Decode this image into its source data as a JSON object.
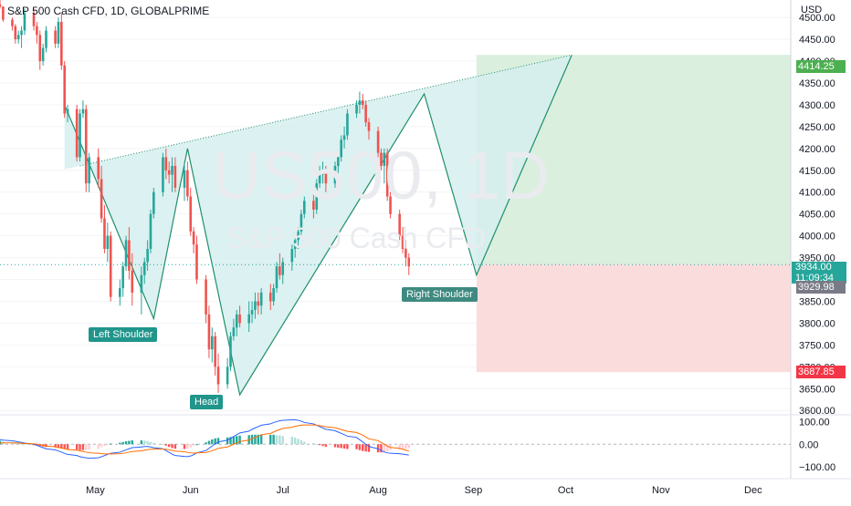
{
  "header": {
    "title": "S&P 500 Cash CFD, 1D, GLOBALPRIME"
  },
  "watermark": {
    "symbol": "US500, 1D",
    "name": "S&P 500 Cash CFD"
  },
  "pattern_labels": {
    "left_shoulder": "Left Shoulder",
    "head": "Head",
    "right_shoulder": "Right Shoulder"
  },
  "price_axis": {
    "currency": "USD",
    "ticks": [
      "4500.00",
      "4450.00",
      "4400.00",
      "4350.00",
      "4300.00",
      "4250.00",
      "4200.00",
      "4150.00",
      "4100.00",
      "4050.00",
      "4000.00",
      "3950.00",
      "3900.00",
      "3850.00",
      "3800.00",
      "3750.00",
      "3700.00",
      "3650.00",
      "3600.00"
    ],
    "target_tag": "4414.25",
    "current_price": "3934.00",
    "countdown": "11:09:34",
    "gray_tag": "3929.98",
    "stop_tag": "3687.85"
  },
  "macd_axis": {
    "ticks": [
      "100.00",
      "0.00",
      "−100.00"
    ]
  },
  "time_axis": {
    "ticks": [
      "May",
      "Jun",
      "Jul",
      "Aug",
      "Sep",
      "Oct",
      "Nov",
      "Dec"
    ]
  },
  "colors": {
    "up": "#26a69a",
    "down": "#ef5350",
    "pattern_fill": "#d6eeee",
    "pattern_line": "#1f8f6a",
    "profit_zone": "#d8eedc",
    "loss_zone": "#fbdadb",
    "macd_line": "#2962ff",
    "signal_line": "#ff6d00",
    "target_tag": "#4caf50",
    "stop_tag": "#f23645",
    "gray_tag": "#787b86"
  },
  "chart_data": {
    "type": "candlestick",
    "title": "S&P 500 Cash CFD, 1D, GLOBALPRIME",
    "ylim": [
      3590,
      4540
    ],
    "price_levels": {
      "target": 4414.25,
      "entry": 3934.0,
      "stop": 3687.85,
      "last": 3929.98
    },
    "pattern": {
      "name": "head and shoulders (inverse)",
      "points": [
        {
          "date": "2022-04-21",
          "price": 4300
        },
        {
          "date": "2022-05-20",
          "price": 3810
        },
        {
          "date": "2022-05-31",
          "price": 4200
        },
        {
          "date": "2022-06-17",
          "price": 3636
        },
        {
          "date": "2022-08-16",
          "price": 4325
        },
        {
          "date": "2022-09-02",
          "price": 3910
        },
        {
          "date": "2022-10-03",
          "price": 4414
        }
      ],
      "neckline": [
        {
          "date": "2022-04-26",
          "price": 4160
        },
        {
          "date": "2022-10-03",
          "price": 4414
        }
      ]
    },
    "candles": {
      "start_date": "2022-03-31",
      "ohlc": [
        [
          4530,
          4545,
          4520,
          4525
        ],
        [
          4525,
          4525,
          4490,
          4495
        ],
        [
          4495,
          4500,
          4470,
          4480
        ],
        [
          4480,
          4485,
          4440,
          4450
        ],
        [
          4450,
          4470,
          4440,
          4460
        ],
        [
          4460,
          4480,
          4430,
          4470
        ],
        [
          4470,
          4520,
          4460,
          4510
        ],
        [
          4510,
          4520,
          4470,
          4480
        ],
        [
          4480,
          4490,
          4440,
          4460
        ],
        [
          4460,
          4470,
          4380,
          4400
        ],
        [
          4400,
          4440,
          4390,
          4430
        ],
        [
          4430,
          4480,
          4420,
          4470
        ],
        [
          4470,
          4480,
          4430,
          4440
        ],
        [
          4440,
          4500,
          4430,
          4490
        ],
        [
          4490,
          4510,
          4380,
          4390
        ],
        [
          4390,
          4400,
          4270,
          4280
        ],
        [
          4280,
          4300,
          4260,
          4290
        ],
        [
          4290,
          4300,
          4170,
          4180
        ],
        [
          4180,
          4290,
          4170,
          4280
        ],
        [
          4280,
          4310,
          4270,
          4290
        ],
        [
          4290,
          4300,
          4100,
          4120
        ],
        [
          4120,
          4190,
          4100,
          4180
        ],
        [
          4180,
          4200,
          4110,
          4130
        ],
        [
          4130,
          4160,
          4030,
          4040
        ],
        [
          4040,
          4070,
          3960,
          3970
        ],
        [
          3970,
          4030,
          3940,
          4000
        ],
        [
          4000,
          4010,
          3850,
          3860
        ],
        [
          3860,
          3900,
          3840,
          3880
        ],
        [
          3880,
          3940,
          3860,
          3930
        ],
        [
          3930,
          4000,
          3920,
          3990
        ],
        [
          3990,
          4020,
          3900,
          3920
        ],
        [
          3920,
          3960,
          3840,
          3870
        ],
        [
          3870,
          3930,
          3820,
          3910
        ],
        [
          3910,
          3950,
          3890,
          3940
        ],
        [
          3940,
          3990,
          3920,
          3970
        ],
        [
          3970,
          4060,
          3960,
          4050
        ],
        [
          4050,
          4110,
          4040,
          4100
        ],
        [
          4100,
          4190,
          4090,
          4180
        ],
        [
          4180,
          4200,
          4130,
          4150
        ],
        [
          4150,
          4170,
          4120,
          4140
        ],
        [
          4140,
          4180,
          4100,
          4160
        ],
        [
          4160,
          4180,
          4100,
          4110
        ],
        [
          4110,
          4170,
          4080,
          4150
        ],
        [
          4150,
          4170,
          4080,
          4090
        ],
        [
          4090,
          4110,
          4000,
          4010
        ],
        [
          4010,
          4020,
          3960,
          3980
        ],
        [
          3980,
          4000,
          3890,
          3900
        ],
        [
          3900,
          3910,
          3800,
          3820
        ],
        [
          3820,
          3840,
          3720,
          3740
        ],
        [
          3740,
          3790,
          3710,
          3770
        ],
        [
          3770,
          3780,
          3680,
          3700
        ],
        [
          3700,
          3730,
          3640,
          3660
        ],
        [
          3660,
          3720,
          3650,
          3700
        ],
        [
          3700,
          3780,
          3690,
          3770
        ],
        [
          3770,
          3810,
          3760,
          3790
        ],
        [
          3790,
          3830,
          3770,
          3820
        ],
        [
          3820,
          3840,
          3790,
          3800
        ],
        [
          3800,
          3850,
          3780,
          3820
        ],
        [
          3820,
          3850,
          3800,
          3830
        ],
        [
          3830,
          3870,
          3810,
          3850
        ],
        [
          3850,
          3870,
          3820,
          3840
        ],
        [
          3840,
          3880,
          3820,
          3870
        ],
        [
          3870,
          3890,
          3830,
          3850
        ],
        [
          3850,
          3890,
          3840,
          3880
        ],
        [
          3880,
          3940,
          3870,
          3930
        ],
        [
          3930,
          3960,
          3900,
          3910
        ],
        [
          3910,
          3950,
          3890,
          3940
        ],
        [
          3940,
          3980,
          3920,
          3970
        ],
        [
          3970,
          4010,
          3950,
          3990
        ],
        [
          3990,
          4020,
          3970,
          4010
        ],
        [
          4010,
          4060,
          4000,
          4050
        ],
        [
          4050,
          4090,
          4040,
          4080
        ],
        [
          4080,
          4100,
          4040,
          4060
        ],
        [
          4060,
          4130,
          4050,
          4120
        ],
        [
          4120,
          4160,
          4110,
          4140
        ],
        [
          4140,
          4170,
          4120,
          4150
        ],
        [
          4150,
          4160,
          4100,
          4120
        ],
        [
          4120,
          4170,
          4110,
          4160
        ],
        [
          4160,
          4190,
          4140,
          4180
        ],
        [
          4180,
          4230,
          4170,
          4220
        ],
        [
          4220,
          4250,
          4200,
          4230
        ],
        [
          4230,
          4290,
          4220,
          4280
        ],
        [
          4280,
          4310,
          4270,
          4300
        ],
        [
          4300,
          4330,
          4280,
          4310
        ],
        [
          4310,
          4325,
          4290,
          4300
        ],
        [
          4300,
          4310,
          4250,
          4260
        ],
        [
          4260,
          4270,
          4220,
          4240
        ],
        [
          4240,
          4250,
          4180,
          4190
        ],
        [
          4190,
          4200,
          4150,
          4160
        ],
        [
          4160,
          4200,
          4120,
          4190
        ],
        [
          4190,
          4200,
          4080,
          4090
        ],
        [
          4090,
          4100,
          4040,
          4050
        ],
        [
          4050,
          4060,
          3990,
          4000
        ],
        [
          4000,
          4020,
          3960,
          3970
        ],
        [
          3970,
          3990,
          3930,
          3950
        ],
        [
          3950,
          3960,
          3910,
          3930
        ]
      ]
    },
    "macd": {
      "ylim": [
        -140,
        130
      ],
      "macd_line": [
        20,
        18,
        15,
        13,
        10,
        8,
        5,
        0,
        -5,
        -10,
        -15,
        -20,
        -25,
        -30,
        -35,
        -40,
        -45,
        -50,
        -55,
        -58,
        -60,
        -62,
        -60,
        -55,
        -50,
        -45,
        -40,
        -35,
        -30,
        -25,
        -20,
        -15,
        -12,
        -10,
        -10,
        -12,
        -15,
        -20,
        -28,
        -36,
        -44,
        -50,
        -54,
        -55,
        -52,
        -46,
        -38,
        -28,
        -18,
        -8,
        2,
        10,
        18,
        26,
        34,
        42,
        50,
        58,
        66,
        72,
        78,
        84,
        90,
        96,
        100,
        104,
        106,
        108,
        108,
        106,
        102,
        96,
        90,
        84,
        78,
        72,
        66,
        60,
        54,
        48,
        42,
        36,
        30,
        20,
        10,
        0,
        -10,
        -20,
        -28,
        -34,
        -38,
        -40,
        -42,
        -44,
        -46,
        -48
      ],
      "signal_line": [
        5,
        6,
        6,
        6,
        5,
        4,
        3,
        2,
        0,
        -2,
        -5,
        -8,
        -11,
        -14,
        -17,
        -20,
        -23,
        -26,
        -29,
        -32,
        -35,
        -38,
        -40,
        -42,
        -43,
        -43,
        -43,
        -42,
        -40,
        -38,
        -35,
        -32,
        -29,
        -26,
        -24,
        -22,
        -21,
        -21,
        -22,
        -24,
        -27,
        -30,
        -33,
        -36,
        -38,
        -39,
        -38,
        -36,
        -33,
        -29,
        -24,
        -18,
        -12,
        -6,
        0,
        6,
        12,
        18,
        24,
        30,
        36,
        42,
        48,
        54,
        60,
        65,
        70,
        75,
        79,
        82,
        84,
        85,
        85,
        84,
        82,
        80,
        77,
        73,
        69,
        65,
        61,
        57,
        52,
        46,
        40,
        32,
        24,
        16,
        8,
        0,
        -8,
        -14,
        -18,
        -22,
        -26,
        -30
      ]
    }
  }
}
